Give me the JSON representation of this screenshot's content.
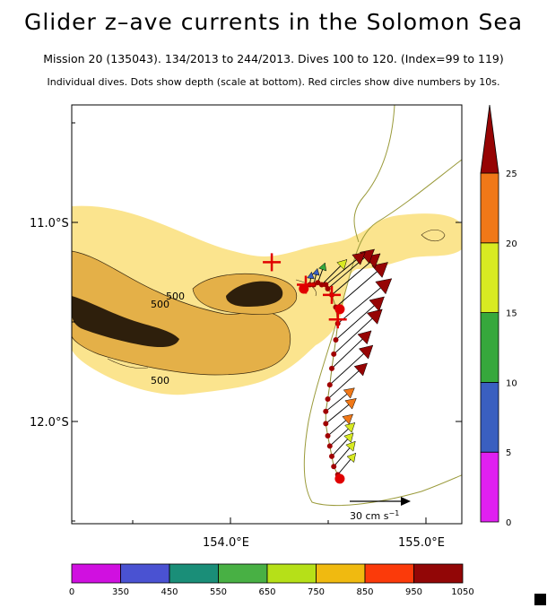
{
  "title": "Glider z–ave currents in the Solomon Sea",
  "subtitle1": "Mission 20 (135043). 134/2013 to 244/2013. Dives 100 to 120. (Index=99 to 119)",
  "subtitle2": "Individual dives. Dots show depth (scale at bottom). Red circles show dive numbers by 10s.",
  "chart_data": {
    "type": "map-vector",
    "title": "Glider z–ave currents in the Solomon Sea",
    "x_axis": {
      "range": [
        153.2,
        155.15
      ],
      "ticks": [
        154.0,
        155.0
      ],
      "tick_labels": [
        "154.0°E",
        "155.0°E"
      ]
    },
    "y_axis": {
      "range": [
        -12.5,
        -10.45
      ],
      "ticks": [
        -11.0,
        -12.0
      ],
      "tick_labels": [
        "11.0°S",
        "12.0°S"
      ]
    },
    "contour_labels": [
      "500",
      "500",
      "500"
    ],
    "speed_scale": {
      "ticks": [
        0,
        5,
        10,
        15,
        20,
        25
      ],
      "labels": [
        "0",
        "5",
        "10",
        "15",
        "20",
        "25"
      ],
      "colors": [
        "#e020f0",
        "#3a5fc0",
        "#36a83c",
        "#d8ea22",
        "#f07818",
        "#960404"
      ]
    },
    "depth_scale": {
      "labels": [
        "0",
        "350",
        "450",
        "550",
        "650",
        "750",
        "850",
        "950",
        "1050"
      ],
      "colors": [
        "#d010e0",
        "#4a52d2",
        "#1a8e78",
        "#48b044",
        "#b6e018",
        "#f0ba10",
        "#fb3a0a",
        "#920606"
      ]
    },
    "reference_vector": {
      "label": "30 cm s",
      "exponent": "−1",
      "speed_cm_s": 30
    },
    "dive_markers": [
      {
        "dive": 100,
        "lon": 154.54,
        "lat": -12.28
      },
      {
        "dive": 110,
        "lon": 154.54,
        "lat": -11.45
      },
      {
        "dive": 120,
        "lon": 154.36,
        "lat": -11.35
      }
    ],
    "crosses": [
      {
        "lon": 154.2,
        "lat": -11.22
      },
      {
        "lon": 154.37,
        "lat": -11.33
      },
      {
        "lon": 154.5,
        "lat": -11.38
      },
      {
        "lon": 154.53,
        "lat": -11.5
      }
    ],
    "vectors": [
      {
        "lon": 154.53,
        "lat": -12.26,
        "u": 10,
        "v": 12,
        "speed": 16
      },
      {
        "lon": 154.51,
        "lat": -12.22,
        "u": 12,
        "v": 14,
        "speed": 18
      },
      {
        "lon": 154.5,
        "lat": -12.17,
        "u": 12,
        "v": 13,
        "speed": 17
      },
      {
        "lon": 154.49,
        "lat": -12.12,
        "u": 14,
        "v": 13,
        "speed": 19
      },
      {
        "lon": 154.48,
        "lat": -12.07,
        "u": 14,
        "v": 12,
        "speed": 20
      },
      {
        "lon": 154.47,
        "lat": -12.01,
        "u": 17,
        "v": 14,
        "speed": 22
      },
      {
        "lon": 154.47,
        "lat": -11.95,
        "u": 16,
        "v": 13,
        "speed": 21
      },
      {
        "lon": 154.48,
        "lat": -11.89,
        "u": 22,
        "v": 20,
        "speed": 28
      },
      {
        "lon": 154.49,
        "lat": -11.82,
        "u": 24,
        "v": 22,
        "speed": 31
      },
      {
        "lon": 154.5,
        "lat": -11.74,
        "u": 22,
        "v": 21,
        "speed": 30
      },
      {
        "lon": 154.51,
        "lat": -11.67,
        "u": 27,
        "v": 25,
        "speed": 35
      },
      {
        "lon": 154.52,
        "lat": -11.6,
        "u": 27,
        "v": 24,
        "speed": 34
      },
      {
        "lon": 154.53,
        "lat": -11.52,
        "u": 30,
        "v": 25,
        "speed": 38
      },
      {
        "lon": 154.52,
        "lat": -11.44,
        "u": 29,
        "v": 25,
        "speed": 37
      },
      {
        "lon": 154.5,
        "lat": -11.38,
        "u": 27,
        "v": 23,
        "speed": 34
      },
      {
        "lon": 154.48,
        "lat": -11.35,
        "u": 26,
        "v": 22,
        "speed": 33
      },
      {
        "lon": 154.47,
        "lat": -11.33,
        "u": 22,
        "v": 18,
        "speed": 28
      },
      {
        "lon": 154.45,
        "lat": -11.33,
        "u": 14,
        "v": 14,
        "speed": 19
      },
      {
        "lon": 154.43,
        "lat": -11.32,
        "u": 4,
        "v": 11,
        "speed": 12
      },
      {
        "lon": 154.41,
        "lat": -11.33,
        "u": 2,
        "v": 9,
        "speed": 9
      },
      {
        "lon": 154.39,
        "lat": -11.33,
        "u": 1,
        "v": 7,
        "speed": 7
      }
    ]
  }
}
